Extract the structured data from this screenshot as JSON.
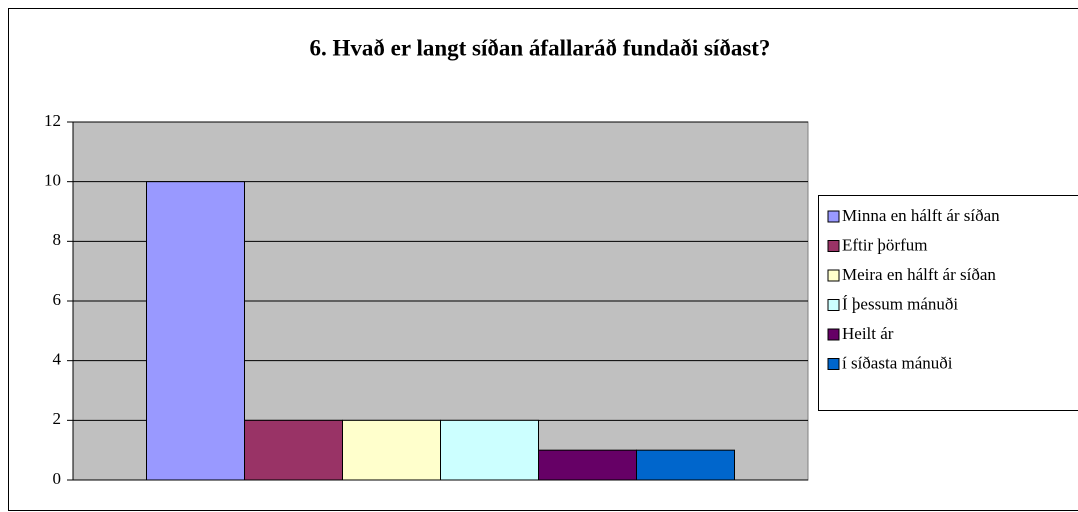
{
  "chart_data": {
    "type": "bar",
    "title": "6. Hvað er langt síðan áfallaráð fundaði síðast?",
    "categories": [
      null
    ],
    "series": [
      {
        "name": "Minna en hálft ár síðan",
        "color": "#9999ff",
        "values": [
          10
        ]
      },
      {
        "name": "Eftir þörfum",
        "color": "#993366",
        "values": [
          2
        ]
      },
      {
        "name": "Meira en hálft ár síðan",
        "color": "#ffffcc",
        "values": [
          2
        ]
      },
      {
        "name": "Í þessum mánuði",
        "color": "#ccffff",
        "values": [
          2
        ]
      },
      {
        "name": "Heilt ár",
        "color": "#660066",
        "values": [
          1
        ]
      },
      {
        "name": "í síðasta mánuði",
        "color": "#0066cc",
        "values": [
          1
        ]
      }
    ],
    "ylim": [
      0,
      12
    ],
    "yticks": [
      0,
      2,
      4,
      6,
      8,
      10,
      12
    ],
    "grid": true,
    "legend": "right"
  }
}
